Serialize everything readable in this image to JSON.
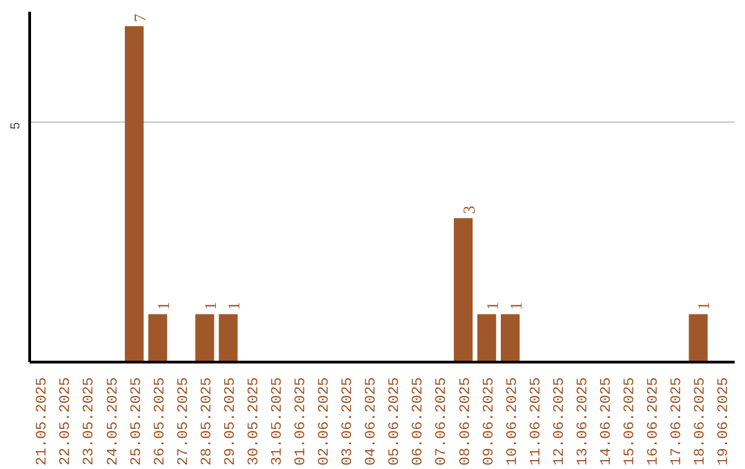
{
  "chart_data": {
    "type": "bar",
    "categories": [
      "21.05.2025",
      "22.05.2025",
      "23.05.2025",
      "24.05.2025",
      "25.05.2025",
      "26.05.2025",
      "27.05.2025",
      "28.05.2025",
      "29.05.2025",
      "30.05.2025",
      "31.05.2025",
      "01.06.2025",
      "02.06.2025",
      "03.06.2025",
      "04.06.2025",
      "05.06.2025",
      "06.06.2025",
      "07.06.2025",
      "08.06.2025",
      "09.06.2025",
      "10.06.2025",
      "11.06.2025",
      "12.06.2025",
      "13.06.2025",
      "14.06.2025",
      "15.06.2025",
      "16.06.2025",
      "17.06.2025",
      "18.06.2025",
      "19.06.2025"
    ],
    "values": [
      0,
      0,
      0,
      0,
      7,
      1,
      0,
      1,
      1,
      0,
      0,
      0,
      0,
      0,
      0,
      0,
      0,
      0,
      3,
      1,
      1,
      0,
      0,
      0,
      0,
      0,
      0,
      0,
      1,
      0
    ],
    "value_labels": [
      null,
      null,
      null,
      null,
      "7",
      "1",
      null,
      "1",
      "1",
      null,
      null,
      null,
      null,
      null,
      null,
      null,
      null,
      null,
      "3",
      "1",
      "1",
      null,
      null,
      null,
      null,
      null,
      null,
      null,
      "1",
      null
    ],
    "color": "#a0572a",
    "ylim": [
      0,
      7.3
    ],
    "yticks": [
      5
    ],
    "grid": "y"
  }
}
